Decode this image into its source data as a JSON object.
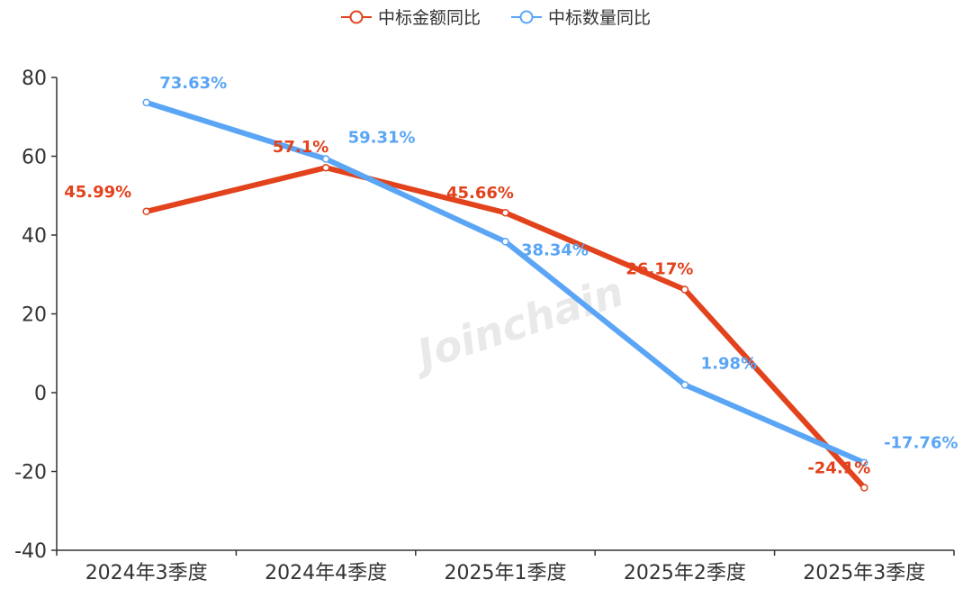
{
  "watermark": "Joinchain",
  "chart_data": {
    "type": "line",
    "categories": [
      "2024年3季度",
      "2024年4季度",
      "2025年1季度",
      "2025年2季度",
      "2025年3季度"
    ],
    "series": [
      {
        "name": "中标金额同比",
        "color": "#e2421c",
        "values": [
          45.99,
          57.1,
          45.66,
          26.17,
          -24.1
        ],
        "labels": [
          "45.99%",
          "57.1%",
          "45.66%",
          "26.17%",
          "-24.1%"
        ]
      },
      {
        "name": "中标数量同比",
        "color": "#5aa5f5",
        "values": [
          73.63,
          59.31,
          38.34,
          1.98,
          -17.76
        ],
        "labels": [
          "73.63%",
          "59.31%",
          "38.34%",
          "1.98%",
          "-17.76%"
        ]
      }
    ],
    "yticks": [
      "80",
      "60",
      "40",
      "20",
      "0",
      "-20",
      "-40"
    ],
    "ylim": [
      -40,
      80
    ],
    "legend_position": "top-center",
    "grid": false
  }
}
